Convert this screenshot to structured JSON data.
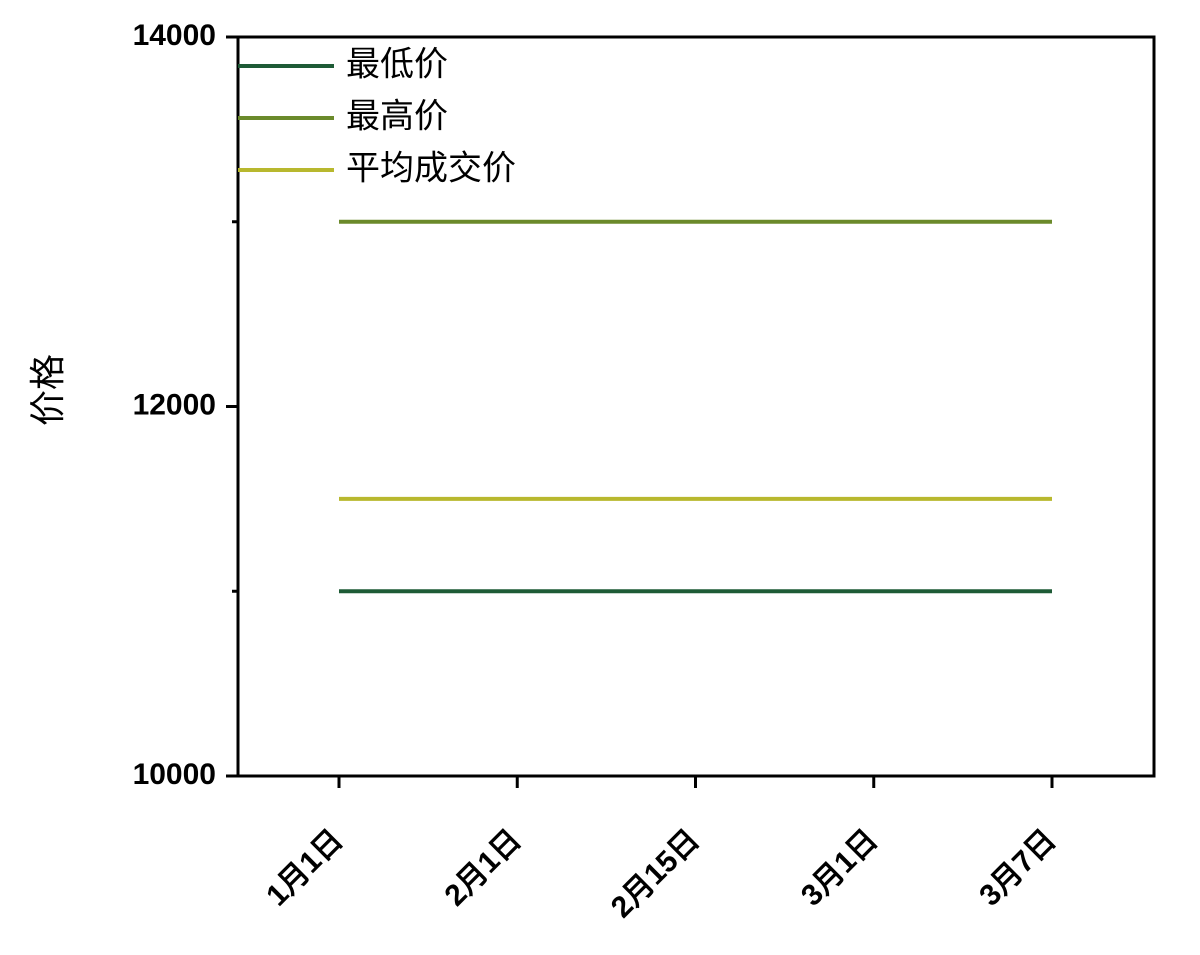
{
  "chart_data": {
    "type": "line",
    "y_label": "价格",
    "categories": [
      "1月1日",
      "2月1日",
      "2月15日",
      "3月1日",
      "3月7日"
    ],
    "series": [
      {
        "name": "最低价",
        "color": "#1e5b36",
        "values": [
          11000,
          11000,
          11000,
          11000,
          11000
        ]
      },
      {
        "name": "最高价",
        "color": "#6b8a2b",
        "values": [
          13000,
          13000,
          13000,
          13000,
          13000
        ]
      },
      {
        "name": "平均成交价",
        "color": "#b8b82e",
        "values": [
          11500,
          11500,
          11500,
          11500,
          11500
        ]
      }
    ],
    "ylim": [
      10000,
      14000
    ],
    "yticks": [
      10000,
      12000,
      14000
    ],
    "legend": "upper left"
  }
}
